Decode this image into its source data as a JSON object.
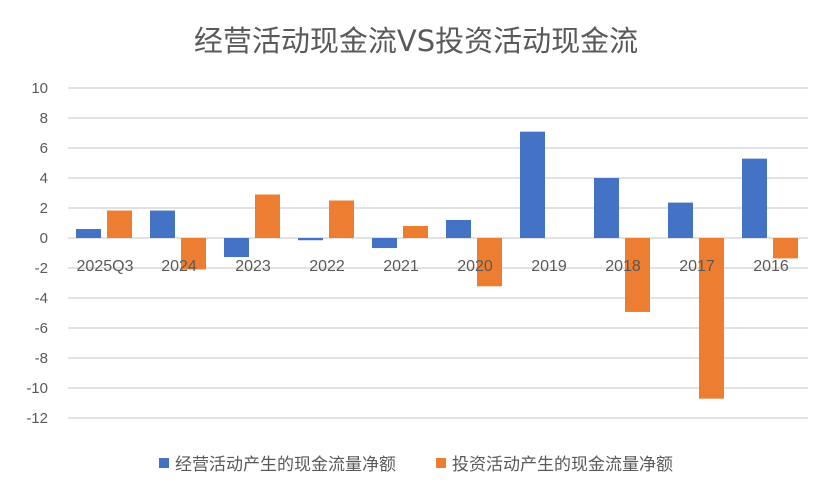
{
  "chart_data": {
    "type": "bar",
    "title": "经营活动现金流VS投资活动现金流",
    "categories": [
      "2025Q3",
      "2024",
      "2023",
      "2022",
      "2021",
      "2020",
      "2019",
      "2018",
      "2017",
      "2016"
    ],
    "series": [
      {
        "name": "经营活动产生的现金流量净额",
        "color": "#4472C4",
        "values": [
          0.6,
          1.83,
          -1.27,
          -0.15,
          -0.67,
          1.2,
          7.09,
          4.0,
          2.36,
          5.29
        ]
      },
      {
        "name": "投资活动产生的现金流量净额",
        "color": "#ED7D31",
        "values": [
          1.83,
          -2.1,
          2.9,
          2.5,
          0.8,
          -3.22,
          0,
          -4.93,
          -10.71,
          -1.36
        ]
      }
    ],
    "ylim": [
      -12,
      10
    ],
    "yticks": [
      10,
      8,
      6,
      4,
      2,
      0,
      -2,
      -4,
      -6,
      -8,
      -10,
      -12
    ],
    "grid": true,
    "legend": "bottom",
    "xlabel": "",
    "ylabel": ""
  }
}
